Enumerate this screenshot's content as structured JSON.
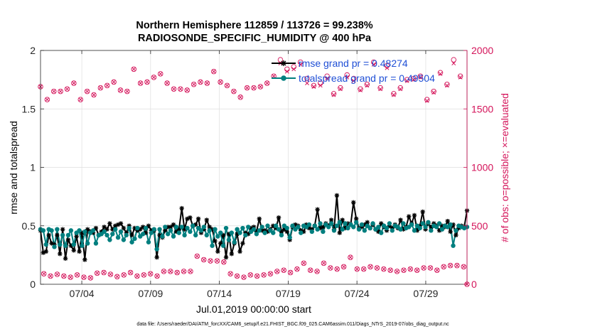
{
  "chart_data": {
    "type": "line",
    "title": "Northern Hemisphere 112859 / 113726 = 99.238%",
    "subtitle": "RADIOSONDE_SPECIFIC_HUMIDITY @ 400 hPa",
    "xlabel": "Jul.01,2019 00:00:00 start",
    "ylabel": "rmse and totalspread",
    "y2label": "# of obs: o=possible; ×=evaluated",
    "footnote": "data file: /Users/raeder/DAI/ATM_forcXX/CAM6_setup/f.e21.FHIST_BGC.f09_025.CAM6assim.011/Diags_NTrS_2019-07/obs_diag_output.nc",
    "x_ticks": [
      "07/04",
      "07/09",
      "07/14",
      "07/19",
      "07/24",
      "07/29"
    ],
    "x_tick_days": [
      4,
      9,
      14,
      19,
      24,
      29
    ],
    "xlim_days": [
      1,
      32
    ],
    "ylim": [
      0,
      2
    ],
    "y_ticks": [
      "0",
      "0.5",
      "1",
      "1.5",
      "2"
    ],
    "y2lim": [
      0,
      2000
    ],
    "y2_ticks": [
      "0",
      "500",
      "1000",
      "1500",
      "2000"
    ],
    "grid": true,
    "legend_position": "top-right",
    "legend": [
      {
        "label": "rmse grand pr = 0.48274",
        "color": "#000000"
      },
      {
        "label": "totalspread grand pr = 0.49504",
        "color": "#007f7f"
      }
    ],
    "colors": {
      "rmse": "#000000",
      "totalspread": "#007f7f",
      "obs_count": "#d4145a",
      "legend_text": "#1f4fd6",
      "grid": "#dedede"
    },
    "series": [
      {
        "name": "rmse",
        "values": [
          0.46,
          0.27,
          0.28,
          0.42,
          0.35,
          0.34,
          0.42,
          0.26,
          0.47,
          0.22,
          0.38,
          0.33,
          0.29,
          0.41,
          0.28,
          0.44,
          0.21,
          0.47,
          0.45,
          0.44,
          0.48,
          0.42,
          0.45,
          0.49,
          0.47,
          0.52,
          0.47,
          0.5,
          0.51,
          0.52,
          0.48,
          0.44,
          0.5,
          0.42,
          0.48,
          0.46,
          0.47,
          0.49,
          0.44,
          0.5,
          0.46,
          0.46,
          0.23,
          0.42,
          0.4,
          0.46,
          0.49,
          0.49,
          0.51,
          0.45,
          0.47,
          0.65,
          0.47,
          0.56,
          0.57,
          0.5,
          0.51,
          0.56,
          0.44,
          0.47,
          0.55,
          0.49,
          0.47,
          0.37,
          0.28,
          0.35,
          0.42,
          0.23,
          0.43,
          0.26,
          0.35,
          0.43,
          0.28,
          0.35,
          0.44,
          0.43,
          0.48,
          0.49,
          0.45,
          0.56,
          0.46,
          0.46,
          0.45,
          0.47,
          0.5,
          0.48,
          0.57,
          0.45,
          0.47,
          0.45,
          0.38,
          0.49,
          0.51,
          0.5,
          0.46,
          0.45,
          0.51,
          0.48,
          0.47,
          0.5,
          0.64,
          0.48,
          0.49,
          0.52,
          0.5,
          0.55,
          0.47,
          0.76,
          0.44,
          0.55,
          0.48,
          0.52,
          0.51,
          0.7,
          0.56,
          0.48,
          0.49,
          0.51,
          0.53,
          0.48,
          0.51,
          0.47,
          0.45,
          0.52,
          0.49,
          0.46,
          0.5,
          0.48,
          0.51,
          0.48,
          0.55,
          0.47,
          0.49,
          0.58,
          0.52,
          0.59,
          0.46,
          0.5,
          0.62,
          0.47,
          0.52,
          0.49,
          0.52,
          0.5,
          0.46,
          0.5,
          0.49,
          0.54,
          0.45,
          0.51,
          0.42,
          0.48,
          0.5,
          0.49,
          0.63
        ]
      },
      {
        "name": "totalspread",
        "values": [
          0.47,
          0.46,
          0.34,
          0.47,
          0.46,
          0.32,
          0.47,
          0.34,
          0.42,
          0.33,
          0.42,
          0.46,
          0.34,
          0.44,
          0.46,
          0.33,
          0.45,
          0.35,
          0.44,
          0.46,
          0.35,
          0.42,
          0.43,
          0.45,
          0.42,
          0.38,
          0.43,
          0.47,
          0.4,
          0.45,
          0.38,
          0.42,
          0.48,
          0.36,
          0.39,
          0.48,
          0.41,
          0.43,
          0.48,
          0.36,
          0.44,
          0.47,
          0.3,
          0.47,
          0.41,
          0.49,
          0.43,
          0.46,
          0.41,
          0.49,
          0.44,
          0.49,
          0.42,
          0.48,
          0.45,
          0.5,
          0.42,
          0.48,
          0.46,
          0.49,
          0.42,
          0.46,
          0.33,
          0.47,
          0.41,
          0.44,
          0.33,
          0.48,
          0.38,
          0.44,
          0.36,
          0.47,
          0.44,
          0.48,
          0.42,
          0.49,
          0.45,
          0.47,
          0.43,
          0.46,
          0.49,
          0.44,
          0.5,
          0.46,
          0.44,
          0.5,
          0.47,
          0.42,
          0.5,
          0.48,
          0.4,
          0.5,
          0.47,
          0.49,
          0.44,
          0.5,
          0.49,
          0.51,
          0.45,
          0.5,
          0.47,
          0.52,
          0.45,
          0.51,
          0.49,
          0.52,
          0.46,
          0.5,
          0.53,
          0.47,
          0.52,
          0.48,
          0.51,
          0.49,
          0.53,
          0.47,
          0.51,
          0.46,
          0.5,
          0.48,
          0.52,
          0.47,
          0.49,
          0.44,
          0.5,
          0.48,
          0.52,
          0.46,
          0.5,
          0.49,
          0.47,
          0.52,
          0.48,
          0.49,
          0.51,
          0.46,
          0.5,
          0.48,
          0.52,
          0.49,
          0.53,
          0.46,
          0.5,
          0.49,
          0.52,
          0.47,
          0.5,
          0.49,
          0.51,
          0.33,
          0.46,
          0.5,
          0.49,
          0.48,
          0.49
        ]
      },
      {
        "name": "obs possible",
        "axis": "right",
        "marker": "o",
        "values": [
          1690,
          90,
          1580,
          70,
          1650,
          85,
          1650,
          70,
          1670,
          60,
          1720,
          80,
          1580,
          60,
          1650,
          55,
          1620,
          95,
          1680,
          100,
          1700,
          85,
          1730,
          65,
          1660,
          80,
          1650,
          100,
          1840,
          70,
          1720,
          80,
          1730,
          90,
          1770,
          70,
          1800,
          110,
          1720,
          110,
          1670,
          100,
          1670,
          110,
          1660,
          110,
          1710,
          240,
          1730,
          210,
          1720,
          200,
          1820,
          200,
          1730,
          190,
          1700,
          90,
          1650,
          70,
          1600,
          60,
          1680,
          80,
          1680,
          70,
          1690,
          80,
          1720,
          90,
          1780,
          110,
          1920,
          120,
          1840,
          100,
          1860,
          130,
          1900,
          180,
          1760,
          120,
          1700,
          110,
          1720,
          180,
          1780,
          140,
          1630,
          130,
          1680,
          150,
          1790,
          230,
          1760,
          130,
          1670,
          130,
          1710,
          150,
          1900,
          140,
          1680,
          130,
          1870,
          120,
          1630,
          110,
          1680,
          120,
          1750,
          130,
          1760,
          120,
          1780,
          140,
          1580,
          140,
          1650,
          120,
          1810,
          150,
          1710,
          160,
          1920,
          160,
          1780,
          150,
          0
        ]
      },
      {
        "name": "obs evaluated",
        "axis": "right",
        "marker": "x",
        "values": [
          1690,
          90,
          1580,
          70,
          1650,
          85,
          1650,
          70,
          1670,
          60,
          1720,
          80,
          1580,
          60,
          1650,
          55,
          1620,
          95,
          1680,
          100,
          1700,
          85,
          1730,
          65,
          1660,
          80,
          1650,
          100,
          1840,
          70,
          1720,
          80,
          1730,
          90,
          1770,
          70,
          1800,
          110,
          1720,
          110,
          1670,
          100,
          1670,
          110,
          1660,
          110,
          1710,
          240,
          1730,
          210,
          1720,
          200,
          1820,
          200,
          1730,
          190,
          1700,
          90,
          1650,
          70,
          1600,
          60,
          1680,
          80,
          1680,
          70,
          1690,
          80,
          1720,
          90,
          1780,
          110,
          1890,
          120,
          1820,
          100,
          1840,
          130,
          1880,
          180,
          1720,
          120,
          1690,
          110,
          1700,
          180,
          1760,
          140,
          1620,
          130,
          1670,
          150,
          1770,
          230,
          1740,
          130,
          1660,
          130,
          1700,
          150,
          1880,
          140,
          1670,
          130,
          1850,
          120,
          1620,
          110,
          1670,
          120,
          1740,
          130,
          1750,
          120,
          1770,
          140,
          1570,
          140,
          1640,
          120,
          1800,
          150,
          1700,
          160,
          1890,
          160,
          1770,
          150,
          0
        ]
      }
    ]
  }
}
